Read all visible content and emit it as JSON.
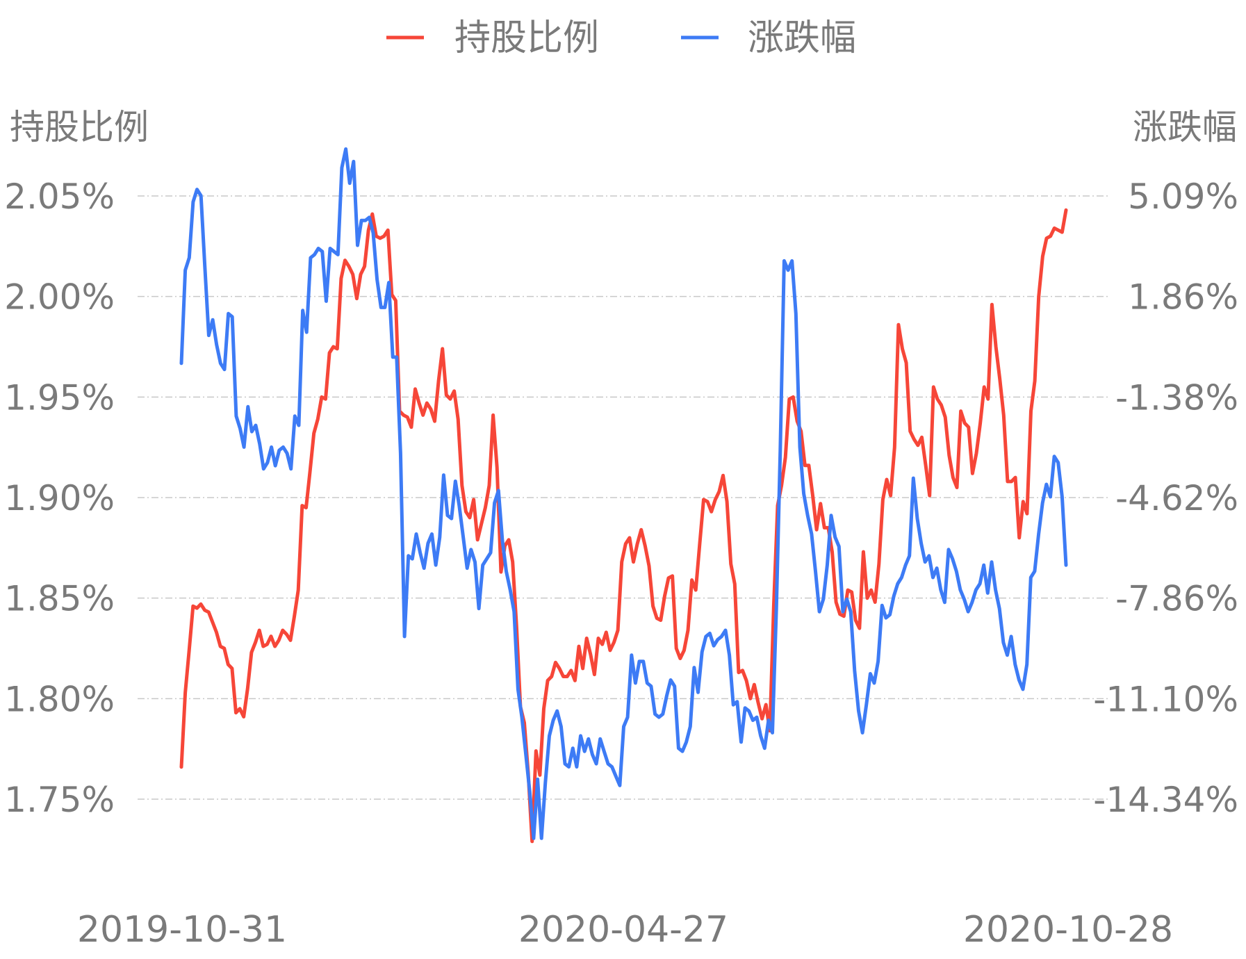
{
  "colors": {
    "holding": "#f64638",
    "change": "#3d7bf5",
    "grid": "#c8c8c8",
    "text": "#7a7a7a"
  },
  "chart_data": {
    "type": "line",
    "legend": [
      "持股比例",
      "涨跌幅"
    ],
    "legend_position": "top-center",
    "grid": true,
    "y_left": {
      "label": "持股比例",
      "ticks": [
        "2.05%",
        "2.00%",
        "1.95%",
        "1.90%",
        "1.85%",
        "1.80%",
        "1.75%"
      ],
      "range": [
        1.75,
        2.05
      ]
    },
    "y_right": {
      "label": "涨跌幅",
      "ticks": [
        "5.09%",
        "1.86%",
        "-1.38%",
        "-4.62%",
        "-7.86%",
        "-11.10%",
        "-14.34%"
      ],
      "range": [
        -14.34,
        5.09
      ]
    },
    "x_ticks": [
      "2019-10-31",
      "2020-04-27",
      "2020-10-28"
    ],
    "series": [
      {
        "name": "持股比例",
        "axis": "left",
        "values": [
          1.766,
          1.803,
          1.824,
          1.846,
          1.845,
          1.847,
          1.844,
          1.843,
          1.838,
          1.833,
          1.826,
          1.825,
          1.817,
          1.815,
          1.793,
          1.795,
          1.791,
          1.805,
          1.823,
          1.828,
          1.834,
          1.826,
          1.827,
          1.831,
          1.826,
          1.829,
          1.834,
          1.832,
          1.829,
          1.841,
          1.854,
          1.896,
          1.895,
          1.913,
          1.932,
          1.939,
          1.95,
          1.949,
          1.972,
          1.975,
          1.974,
          2.009,
          2.018,
          2.015,
          2.011,
          1.999,
          2.011,
          2.015,
          2.033,
          2.041,
          2.03,
          2.029,
          2.03,
          2.033,
          2.001,
          1.998,
          1.943,
          1.941,
          1.94,
          1.935,
          1.954,
          1.947,
          1.941,
          1.947,
          1.944,
          1.938,
          1.958,
          1.974,
          1.951,
          1.949,
          1.953,
          1.939,
          1.906,
          1.893,
          1.89,
          1.899,
          1.879,
          1.887,
          1.895,
          1.906,
          1.941,
          1.915,
          1.863,
          1.876,
          1.879,
          1.868,
          1.836,
          1.796,
          1.788,
          1.763,
          1.729,
          1.774,
          1.762,
          1.795,
          1.809,
          1.811,
          1.818,
          1.815,
          1.811,
          1.811,
          1.814,
          1.809,
          1.826,
          1.815,
          1.83,
          1.822,
          1.812,
          1.83,
          1.827,
          1.833,
          1.824,
          1.828,
          1.834,
          1.868,
          1.877,
          1.88,
          1.868,
          1.877,
          1.884,
          1.876,
          1.866,
          1.846,
          1.84,
          1.839,
          1.851,
          1.86,
          1.861,
          1.825,
          1.82,
          1.824,
          1.834,
          1.859,
          1.854,
          1.877,
          1.899,
          1.898,
          1.893,
          1.899,
          1.903,
          1.911,
          1.898,
          1.867,
          1.857,
          1.813,
          1.814,
          1.809,
          1.8,
          1.807,
          1.798,
          1.79,
          1.797,
          1.784,
          1.846,
          1.896,
          1.906,
          1.92,
          1.949,
          1.95,
          1.938,
          1.933,
          1.916,
          1.916,
          1.901,
          1.884,
          1.897,
          1.885,
          1.885,
          1.873,
          1.848,
          1.842,
          1.841,
          1.854,
          1.853,
          1.839,
          1.835,
          1.873,
          1.85,
          1.854,
          1.848,
          1.867,
          1.899,
          1.909,
          1.901,
          1.925,
          1.986,
          1.974,
          1.967,
          1.933,
          1.929,
          1.926,
          1.93,
          1.916,
          1.901,
          1.955,
          1.949,
          1.946,
          1.94,
          1.921,
          1.91,
          1.905,
          1.943,
          1.937,
          1.935,
          1.912,
          1.922,
          1.937,
          1.955,
          1.949,
          1.996,
          1.975,
          1.959,
          1.941,
          1.908,
          1.908,
          1.91,
          1.88,
          1.898,
          1.892,
          1.943,
          1.958,
          2.0,
          2.02,
          2.029,
          2.03,
          2.034,
          2.033,
          2.032,
          2.043
        ]
      },
      {
        "name": "涨跌幅",
        "axis": "right",
        "values": [
          -0.3,
          2.7,
          3.1,
          4.9,
          5.3,
          5.1,
          2.8,
          0.6,
          1.1,
          0.3,
          -0.3,
          -0.5,
          1.3,
          1.2,
          -2.0,
          -2.4,
          -3.0,
          -1.7,
          -2.5,
          -2.3,
          -2.9,
          -3.7,
          -3.5,
          -3.0,
          -3.6,
          -3.1,
          -3.0,
          -3.2,
          -3.7,
          -2.0,
          -2.3,
          1.4,
          0.7,
          3.1,
          3.2,
          3.4,
          3.3,
          1.7,
          3.4,
          3.3,
          3.2,
          6.0,
          6.6,
          5.5,
          6.2,
          3.5,
          4.3,
          4.3,
          4.4,
          3.9,
          2.4,
          1.5,
          1.5,
          2.3,
          -0.1,
          -0.1,
          -3.2,
          -9.1,
          -6.5,
          -6.6,
          -5.8,
          -6.4,
          -6.9,
          -6.1,
          -5.8,
          -6.8,
          -5.9,
          -3.9,
          -5.2,
          -5.3,
          -4.1,
          -4.9,
          -5.9,
          -6.9,
          -6.3,
          -6.7,
          -8.2,
          -6.8,
          -6.6,
          -6.4,
          -4.8,
          -4.4,
          -6.0,
          -7.0,
          -7.6,
          -8.3,
          -10.8,
          -11.7,
          -12.9,
          -14.1,
          -15.6,
          -13.7,
          -15.6,
          -13.8,
          -12.3,
          -11.8,
          -11.5,
          -12.0,
          -13.2,
          -13.3,
          -12.7,
          -13.3,
          -12.3,
          -12.8,
          -12.4,
          -12.9,
          -13.2,
          -12.4,
          -12.8,
          -13.2,
          -13.3,
          -13.6,
          -13.9,
          -12.0,
          -11.7,
          -9.7,
          -10.6,
          -9.9,
          -9.9,
          -10.6,
          -10.7,
          -11.6,
          -11.7,
          -11.6,
          -11.0,
          -10.5,
          -10.7,
          -12.7,
          -12.8,
          -12.5,
          -12.0,
          -10.1,
          -10.9,
          -9.6,
          -9.1,
          -9.0,
          -9.4,
          -9.2,
          -9.1,
          -8.9,
          -9.7,
          -11.3,
          -11.2,
          -12.5,
          -11.4,
          -11.5,
          -11.8,
          -11.7,
          -12.3,
          -12.7,
          -11.8,
          -12.2,
          -8.2,
          -3.1,
          3.0,
          2.7,
          3.0,
          1.3,
          -3.0,
          -4.5,
          -5.2,
          -5.8,
          -7.0,
          -8.3,
          -7.9,
          -6.8,
          -5.2,
          -5.9,
          -6.2,
          -8.3,
          -7.9,
          -8.3,
          -10.2,
          -11.5,
          -12.2,
          -11.3,
          -10.3,
          -10.6,
          -9.9,
          -8.1,
          -8.5,
          -8.4,
          -7.8,
          -7.4,
          -7.2,
          -6.8,
          -6.5,
          -4.0,
          -5.3,
          -6.1,
          -6.7,
          -6.5,
          -7.2,
          -6.9,
          -7.6,
          -8.0,
          -6.3,
          -6.6,
          -7.0,
          -7.6,
          -7.9,
          -8.3,
          -8.0,
          -7.6,
          -7.4,
          -6.8,
          -7.7,
          -6.7,
          -7.6,
          -8.2,
          -9.3,
          -9.7,
          -9.1,
          -10.0,
          -10.5,
          -10.8,
          -10.0,
          -7.2,
          -7.0,
          -5.8,
          -4.8,
          -4.2,
          -4.6,
          -3.3,
          -3.5,
          -4.6,
          -6.8
        ]
      }
    ]
  }
}
